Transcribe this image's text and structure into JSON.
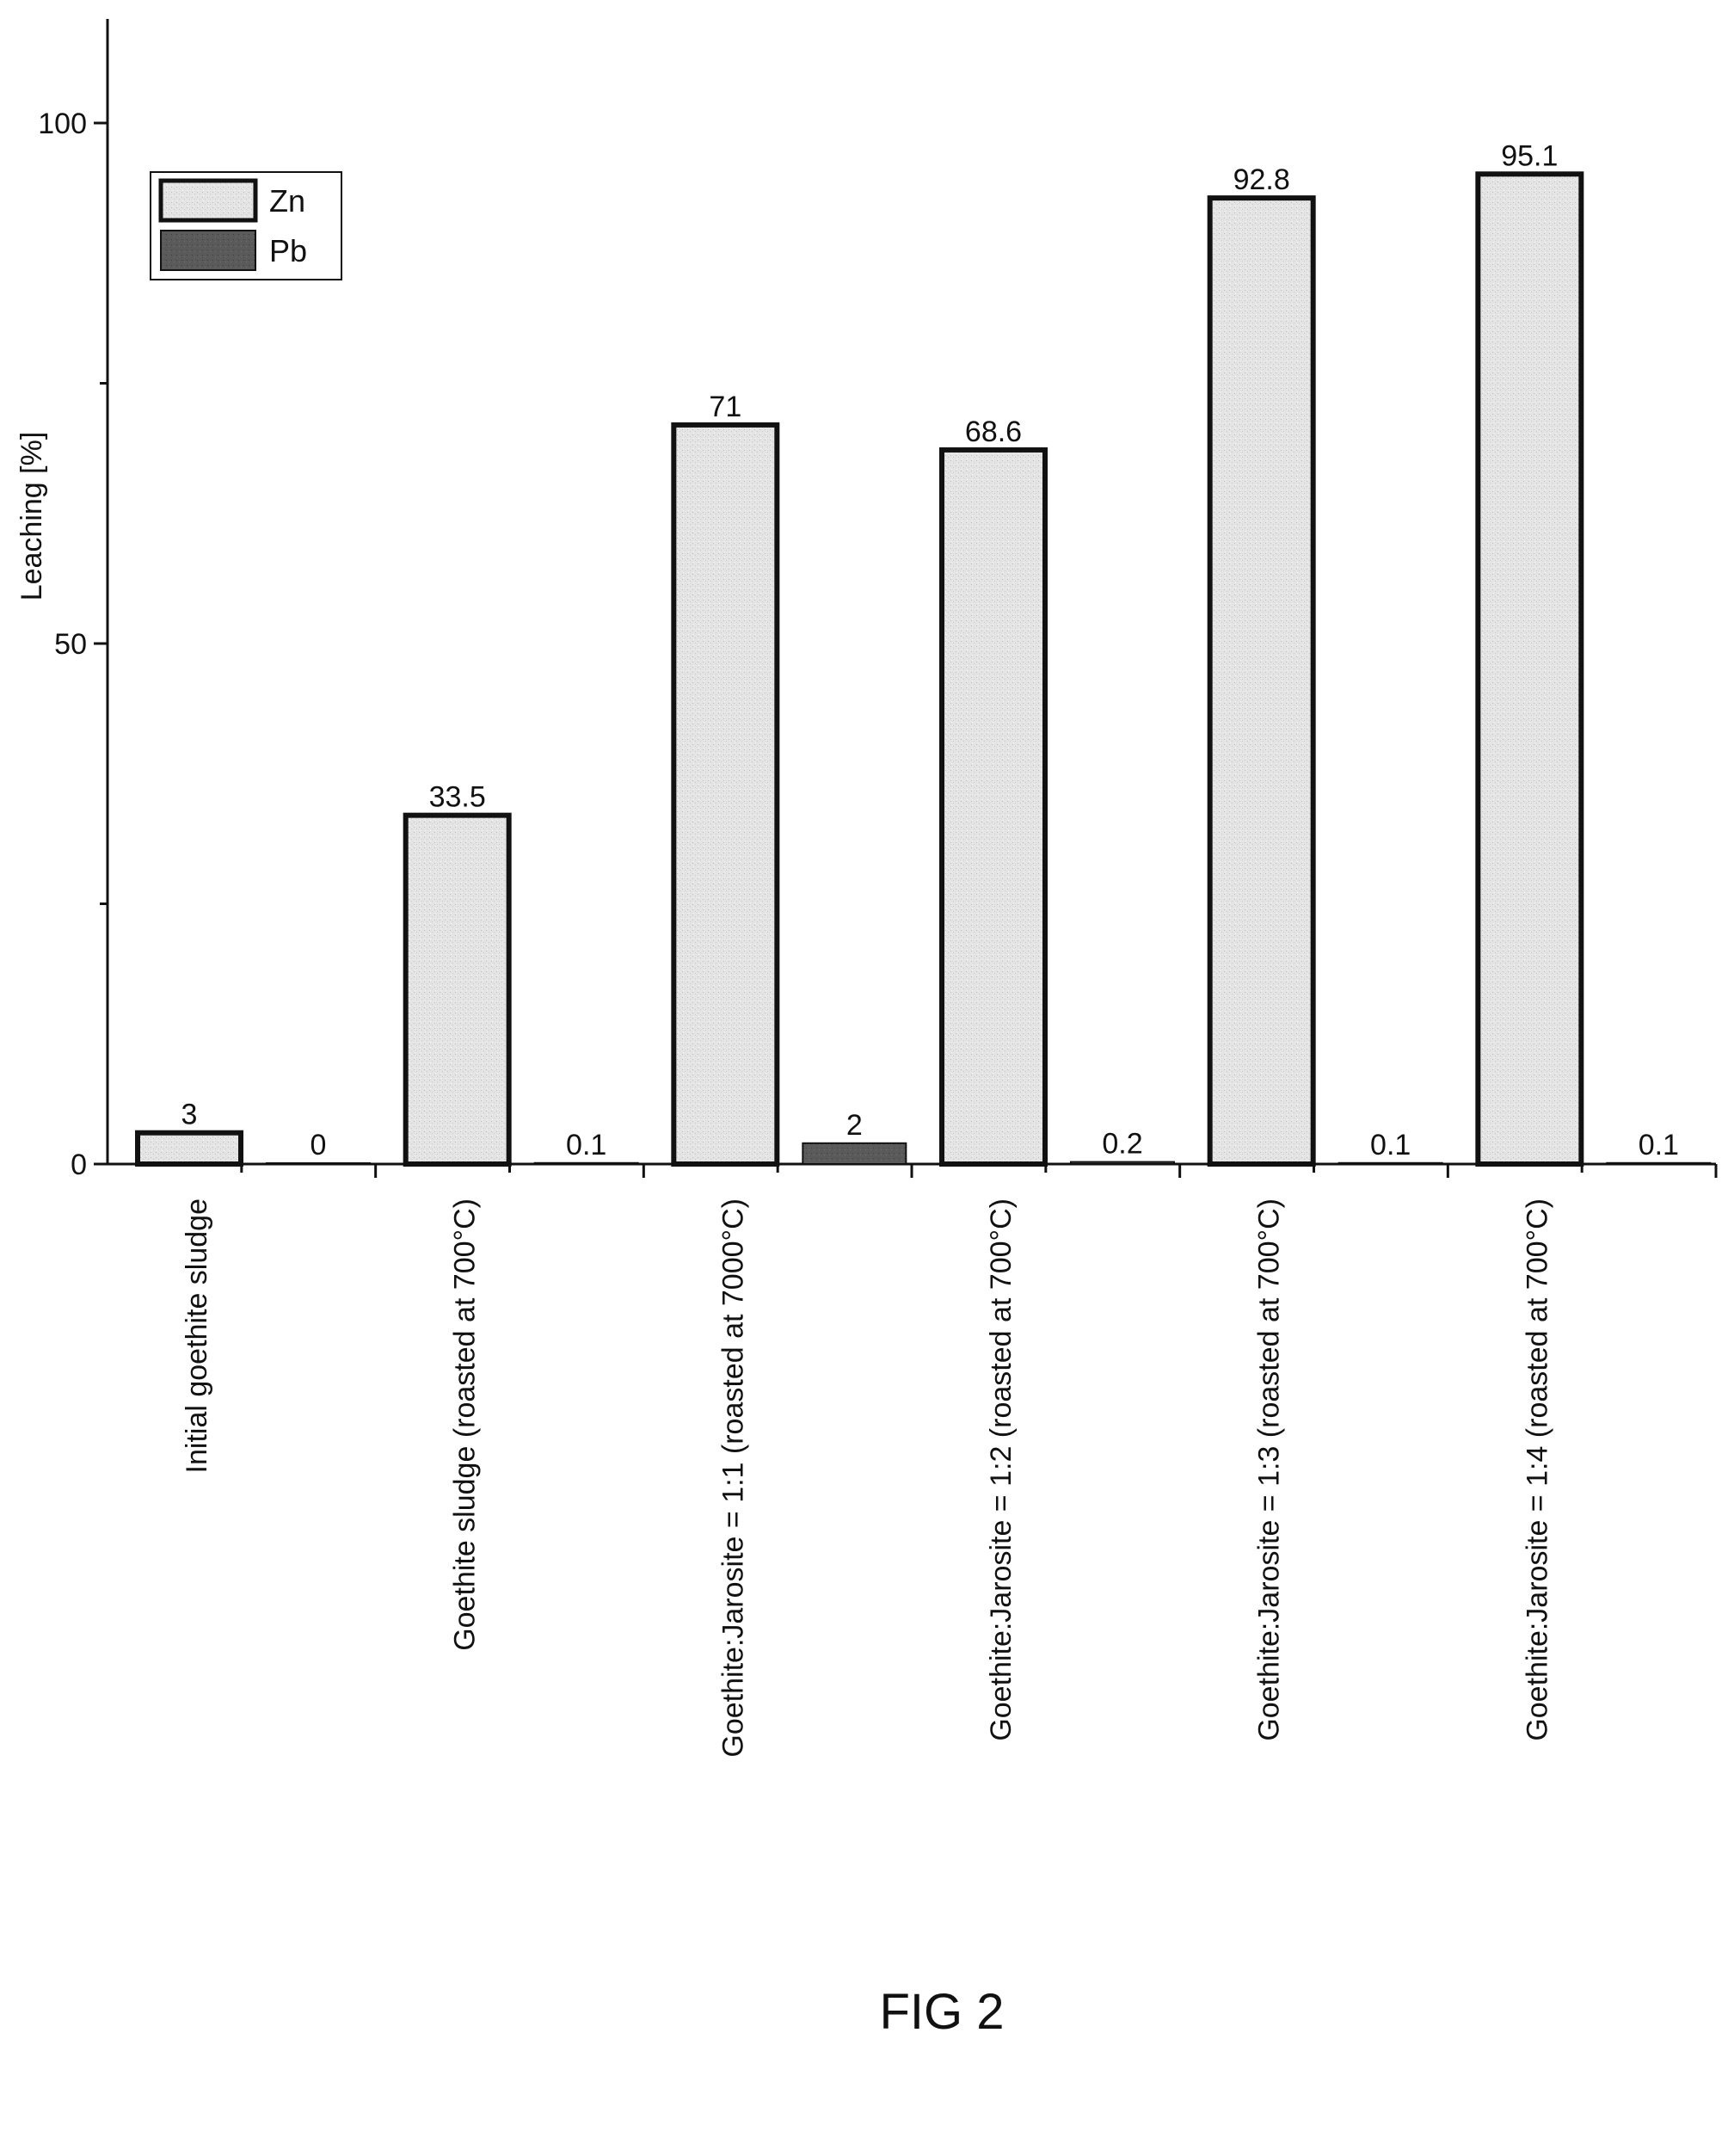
{
  "chart_data": {
    "type": "bar",
    "ylabel": "Leaching [%]",
    "xlabel": "",
    "ylim": [
      0,
      110
    ],
    "yticks": [
      0,
      50,
      100
    ],
    "grid": false,
    "legend_position": "top-left",
    "categories": [
      "Initial goethite sludge",
      "Goethite sludge (roasted at 700°C)",
      "Goethite:Jarosite = 1:1 (roasted at 7000°C)",
      "Goethite:Jarosite = 1:2 (roasted at 700°C)",
      "Goethite:Jarosite = 1:3 (roasted at 700°C)",
      "Goethite:Jarosite = 1:4 (roasted at 700°C)"
    ],
    "series": [
      {
        "name": "Zn",
        "color": "#e2e2e2",
        "values": [
          3,
          33.5,
          71,
          68.6,
          92.8,
          95.1
        ],
        "labels": [
          "3",
          "33.5",
          "71",
          "68.6",
          "92.8",
          "95.1"
        ]
      },
      {
        "name": "Pb",
        "color": "#555555",
        "values": [
          0,
          0.1,
          2,
          0.2,
          0.1,
          0.1
        ],
        "labels": [
          "0",
          "0.1",
          "2",
          "0.2",
          "0.1",
          "0.1"
        ]
      }
    ]
  },
  "caption": "FIG 2"
}
